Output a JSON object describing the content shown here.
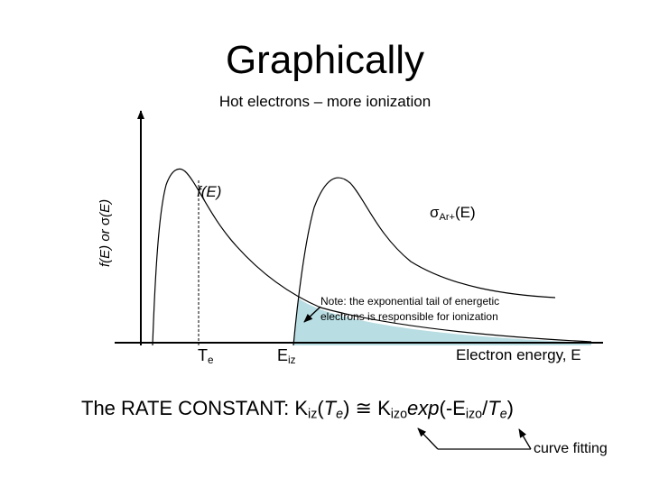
{
  "title": "Graphically",
  "subtitle": "Hot electrons – more ionization",
  "y_axis_label": {
    "prefix": "f(E) or ",
    "sigma": "σ",
    "suffix": "(E)"
  },
  "curve_f": {
    "label": "f(E)"
  },
  "curve_sigma": {
    "sigma": "σ",
    "subscript": "Ar+",
    "suffix": "(E)"
  },
  "note": "Note: the exponential tail of energetic electrons is responsible for ionization",
  "x_ticks": {
    "te_main": "T",
    "te_sub": "e",
    "eiz_main": "E",
    "eiz_sub": "iz"
  },
  "x_axis_label": "Electron energy, E",
  "rate_constant": {
    "lead": "The RATE CONSTANT:  K",
    "k_sub": "iz",
    "open": "(",
    "te": "T",
    "te_sub": "e",
    "close": ")",
    "approx": " ≅ K",
    "k0_sub": "izo",
    "exp": "exp",
    "exp_open": "(-E",
    "e_sub": "izo",
    "slash": "/",
    "te2": "T",
    "te2_sub": "e",
    "end": ")"
  },
  "curve_fitting_label": "curve fitting",
  "colors": {
    "overlap_fill": "#b8dde2",
    "line": "#000000"
  }
}
